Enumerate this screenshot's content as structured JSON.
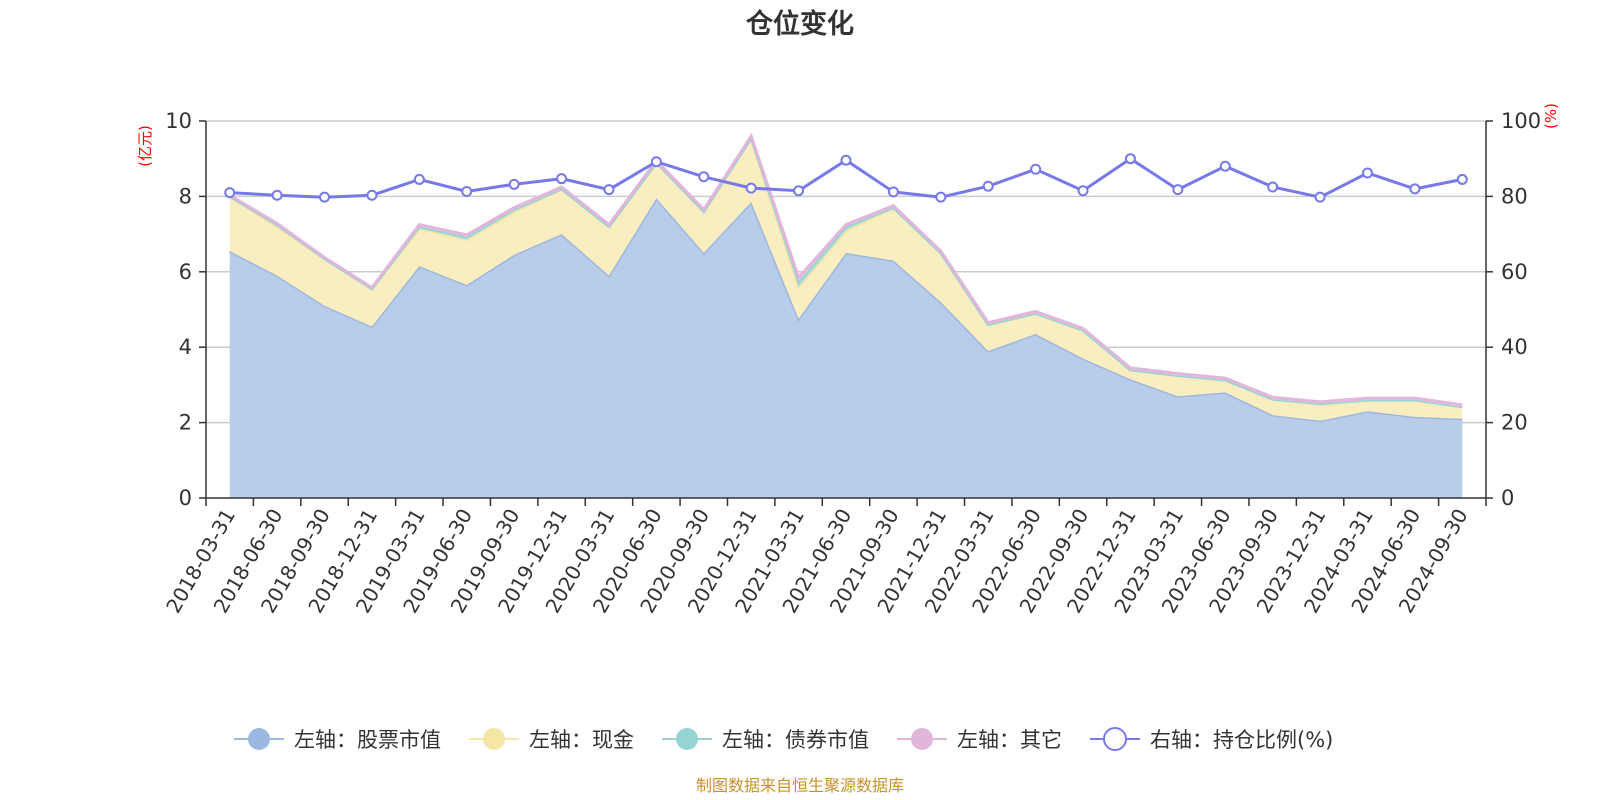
{
  "chart_data": {
    "type": "area",
    "title": "仓位变化",
    "left_axis_unit": "(亿元)",
    "right_axis_unit": "(%)",
    "left_ylim": [
      0,
      10
    ],
    "left_ticks": [
      0,
      2,
      4,
      6,
      8,
      10
    ],
    "right_ylim": [
      0,
      100
    ],
    "right_ticks": [
      0,
      20,
      40,
      60,
      80,
      100
    ],
    "categories": [
      "2018-03-31",
      "2018-06-30",
      "2018-09-30",
      "2018-12-31",
      "2019-03-31",
      "2019-06-30",
      "2019-09-30",
      "2019-12-31",
      "2020-03-31",
      "2020-06-30",
      "2020-09-30",
      "2020-12-31",
      "2021-03-31",
      "2021-06-30",
      "2021-09-30",
      "2021-12-31",
      "2022-03-31",
      "2022-06-30",
      "2022-09-30",
      "2022-12-31",
      "2023-03-31",
      "2023-06-30",
      "2023-09-30",
      "2023-12-31",
      "2024-03-31",
      "2024-06-30",
      "2024-09-30"
    ],
    "series": [
      {
        "name": "左轴：股票市值",
        "axis": "left",
        "type": "stacked-area",
        "color": "#9db8e0",
        "fill": "#b8cdea",
        "values": [
          6.55,
          5.9,
          5.1,
          4.55,
          6.15,
          5.65,
          6.45,
          7.0,
          5.9,
          7.95,
          6.5,
          7.85,
          4.75,
          6.5,
          6.3,
          5.2,
          3.9,
          4.35,
          3.7,
          3.15,
          2.7,
          2.8,
          2.2,
          2.05,
          2.3,
          2.15,
          2.1
        ]
      },
      {
        "name": "左轴：现金",
        "axis": "left",
        "type": "stacked-area",
        "color": "#f5e6a5",
        "fill": "#faedbf",
        "values": [
          1.45,
          1.3,
          1.25,
          1.0,
          1.0,
          1.2,
          1.15,
          1.2,
          1.3,
          0.95,
          1.1,
          1.7,
          0.85,
          0.6,
          1.4,
          1.3,
          0.7,
          0.55,
          0.75,
          0.25,
          0.55,
          0.33,
          0.42,
          0.45,
          0.3,
          0.45,
          0.32
        ]
      },
      {
        "name": "左轴：债券市值",
        "axis": "left",
        "type": "stacked-area",
        "color": "#96d4d4",
        "fill": "#a8dcdc",
        "values": [
          0,
          0.05,
          0,
          0,
          0.05,
          0.08,
          0.05,
          0,
          0,
          0,
          0,
          0,
          0.15,
          0.1,
          0,
          0,
          0,
          0,
          0,
          0,
          0,
          0,
          0,
          0,
          0,
          0,
          0
        ]
      },
      {
        "name": "左轴：其它",
        "axis": "left",
        "type": "stacked-area",
        "color": "#e2b5da",
        "fill": "#edc5e6",
        "values": [
          0.03,
          0.03,
          0.03,
          0.03,
          0.05,
          0.05,
          0.05,
          0.05,
          0.05,
          0.05,
          0.05,
          0.05,
          0.1,
          0.05,
          0.05,
          0.05,
          0.05,
          0.05,
          0.05,
          0.05,
          0.05,
          0.05,
          0.05,
          0.05,
          0.05,
          0.05,
          0.05
        ]
      },
      {
        "name": "右轴：持仓比例(%)",
        "axis": "right",
        "type": "line",
        "color": "#7779e9",
        "values": [
          81,
          80.3,
          79.8,
          80.3,
          84.5,
          81.3,
          83.2,
          84.7,
          81.8,
          89.2,
          85.2,
          82.2,
          81.5,
          89.6,
          81.2,
          79.8,
          82.7,
          87.2,
          81.5,
          90,
          81.8,
          88,
          82.5,
          79.8,
          86.2,
          82,
          84.5
        ]
      }
    ],
    "legend_position": "bottom-center",
    "grid": true
  },
  "source_text": "制图数据来自恒生聚源数据库"
}
